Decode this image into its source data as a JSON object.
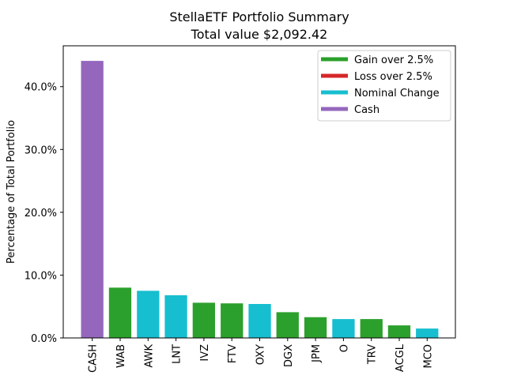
{
  "chart_data": {
    "type": "bar",
    "title": "StellaETF Portfolio Summary",
    "subtitle": "Total value $2,092.42",
    "xlabel": "",
    "ylabel": "Percentage of Total Portfolio",
    "ylim": [
      0,
      46.5
    ],
    "yticks": [
      0,
      10,
      20,
      30,
      40
    ],
    "ytick_labels": [
      "0.0%",
      "10.0%",
      "20.0%",
      "30.0%",
      "40.0%"
    ],
    "grid": false,
    "legend_position": "top-right",
    "categories": [
      "CASH",
      "WAB",
      "AWK",
      "LNT",
      "IVZ",
      "FTV",
      "OXY",
      "DGX",
      "JPM",
      "O",
      "TRV",
      "ACGL",
      "MCO"
    ],
    "values": [
      44.1,
      8.0,
      7.5,
      6.8,
      5.6,
      5.5,
      5.4,
      4.1,
      3.3,
      3.0,
      3.0,
      2.0,
      1.5
    ],
    "bar_groups": [
      "cash",
      "gain",
      "nominal",
      "nominal",
      "gain",
      "gain",
      "nominal",
      "gain",
      "gain",
      "nominal",
      "gain",
      "gain",
      "nominal"
    ],
    "legend": [
      {
        "key": "gain",
        "label": "Gain over 2.5%",
        "color": "#2ca02c"
      },
      {
        "key": "loss",
        "label": "Loss over 2.5%",
        "color": "#d62728"
      },
      {
        "key": "nominal",
        "label": "Nominal Change",
        "color": "#17becf"
      },
      {
        "key": "cash",
        "label": "Cash",
        "color": "#9467bd"
      }
    ]
  }
}
